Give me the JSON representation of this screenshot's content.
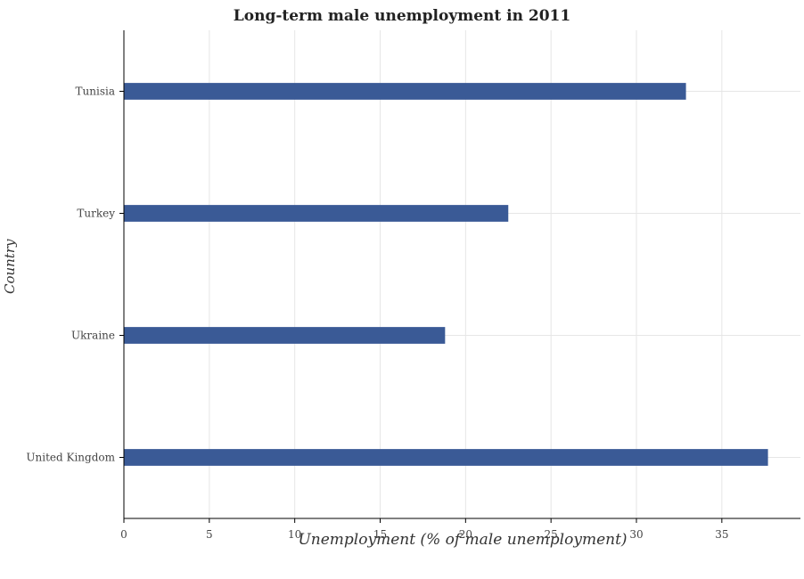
{
  "chart_data": {
    "type": "bar",
    "orientation": "horizontal",
    "title": "Long-term male unemployment in 2011",
    "xlabel": "Unemployment (% of male unemployment)",
    "ylabel": "Country",
    "categories": [
      "Tunisia",
      "Turkey",
      "Ukraine",
      "United Kingdom"
    ],
    "values": [
      32.9,
      22.5,
      18.8,
      37.7
    ],
    "xlim": [
      0,
      39.6
    ],
    "xticks": [
      0,
      5,
      10,
      15,
      20,
      25,
      30,
      35
    ],
    "grid": true,
    "bar_color": "#3a5a96"
  }
}
